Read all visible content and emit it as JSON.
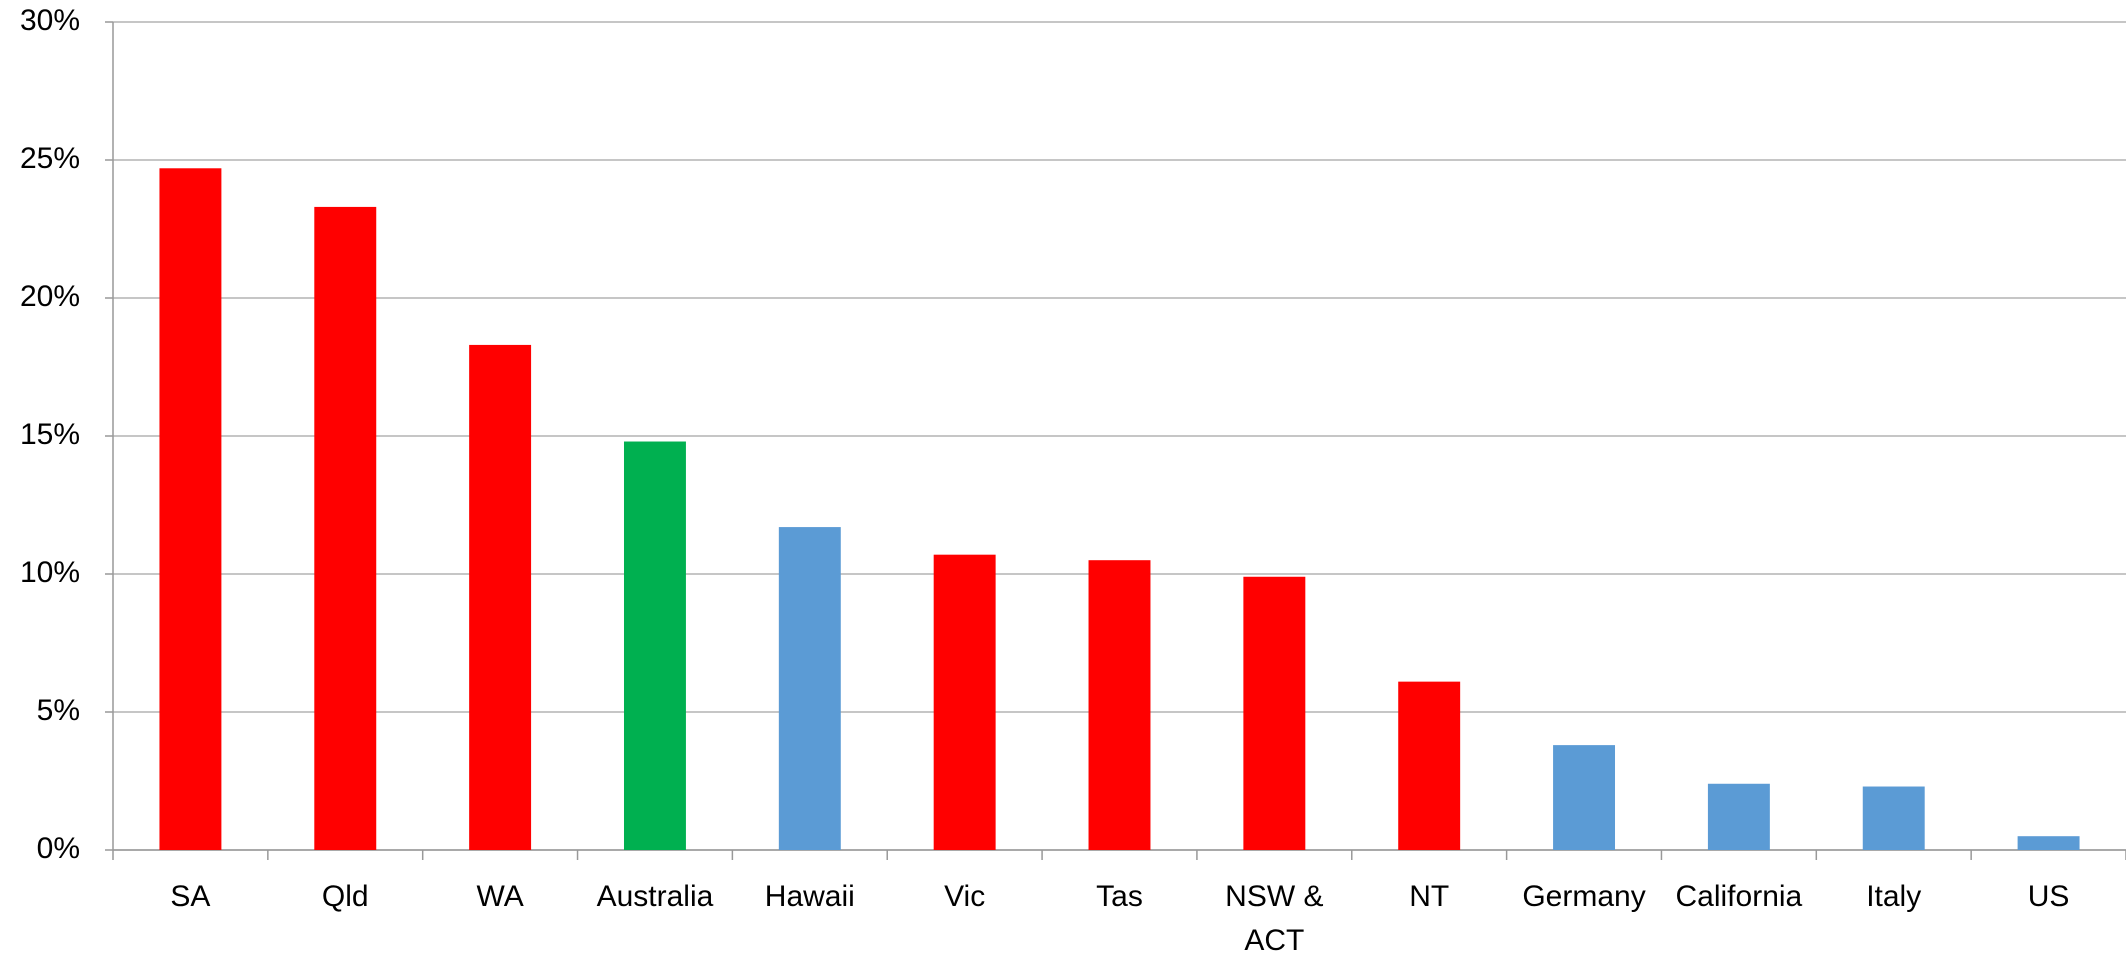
{
  "chart_data": {
    "type": "bar",
    "categories": [
      "SA",
      "Qld",
      "WA",
      "Australia",
      "Hawaii",
      "Vic",
      "Tas",
      "NSW & ACT",
      "NT",
      "Germany",
      "California",
      "Italy",
      "US"
    ],
    "values": [
      24.7,
      23.3,
      18.3,
      14.8,
      11.7,
      10.7,
      10.5,
      9.9,
      6.1,
      3.8,
      2.4,
      2.3,
      0.5
    ],
    "colors": [
      "#ff0000",
      "#ff0000",
      "#ff0000",
      "#00b050",
      "#5b9bd5",
      "#ff0000",
      "#ff0000",
      "#ff0000",
      "#ff0000",
      "#5b9bd5",
      "#5b9bd5",
      "#5b9bd5",
      "#5b9bd5"
    ],
    "ylim": [
      0,
      30
    ],
    "yticks": [
      {
        "value": 0,
        "label": "0%"
      },
      {
        "value": 5,
        "label": "5%"
      },
      {
        "value": 10,
        "label": "10%"
      },
      {
        "value": 15,
        "label": "15%"
      },
      {
        "value": 20,
        "label": "20%"
      },
      {
        "value": 25,
        "label": "25%"
      },
      {
        "value": 30,
        "label": "30%"
      }
    ],
    "grid": true
  }
}
